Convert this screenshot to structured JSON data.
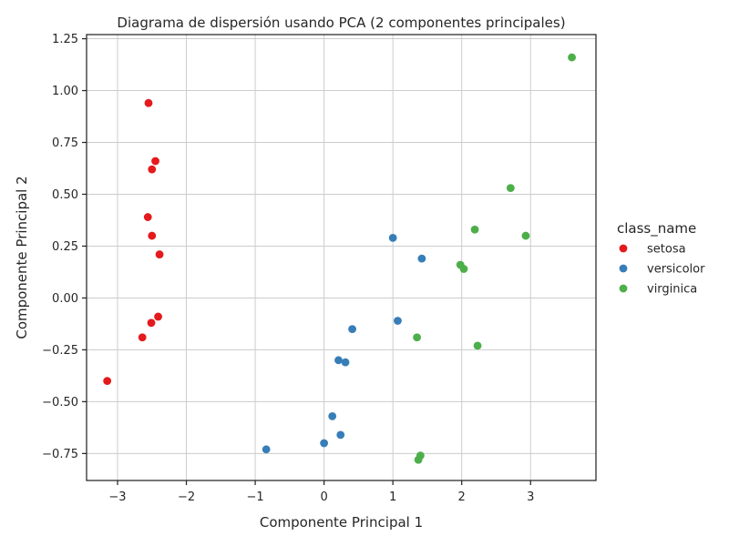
{
  "chart_data": {
    "type": "scatter",
    "title": "Diagrama de dispersión usando PCA (2 componentes principales)",
    "xlabel": "Componente Principal 1",
    "ylabel": "Componente Principal 2",
    "xlim": [
      -3.45,
      3.95
    ],
    "ylim": [
      -0.88,
      1.27
    ],
    "xticks": [
      -3,
      -2,
      -1,
      0,
      1,
      2,
      3
    ],
    "xtick_labels": [
      "−3",
      "−2",
      "−1",
      "0",
      "1",
      "2",
      "3"
    ],
    "yticks": [
      -0.75,
      -0.5,
      -0.25,
      0.0,
      0.25,
      0.5,
      0.75,
      1.0,
      1.25
    ],
    "ytick_labels": [
      "−0.75",
      "−0.50",
      "−0.25",
      "0.00",
      "0.25",
      "0.50",
      "0.75",
      "1.00",
      "1.25"
    ],
    "grid": true,
    "legend": {
      "title": "class_name",
      "placement": "right"
    },
    "series": [
      {
        "name": "setosa",
        "color": "#e41a1c",
        "points": [
          [
            -2.55,
            0.94
          ],
          [
            -2.45,
            0.66
          ],
          [
            -2.5,
            0.62
          ],
          [
            -2.56,
            0.39
          ],
          [
            -2.5,
            0.3
          ],
          [
            -2.39,
            0.21
          ],
          [
            -2.41,
            -0.09
          ],
          [
            -2.51,
            -0.12
          ],
          [
            -2.64,
            -0.19
          ],
          [
            -3.15,
            -0.4
          ]
        ]
      },
      {
        "name": "versicolor",
        "color": "#377eb8",
        "points": [
          [
            1.0,
            0.29
          ],
          [
            1.42,
            0.19
          ],
          [
            1.07,
            -0.11
          ],
          [
            0.41,
            -0.15
          ],
          [
            0.21,
            -0.3
          ],
          [
            0.31,
            -0.31
          ],
          [
            0.12,
            -0.57
          ],
          [
            0.24,
            -0.66
          ],
          [
            0.0,
            -0.7
          ],
          [
            -0.84,
            -0.73
          ]
        ]
      },
      {
        "name": "virginica",
        "color": "#4daf4a",
        "points": [
          [
            3.6,
            1.16
          ],
          [
            2.71,
            0.53
          ],
          [
            2.19,
            0.33
          ],
          [
            2.93,
            0.3
          ],
          [
            1.98,
            0.16
          ],
          [
            2.03,
            0.14
          ],
          [
            1.35,
            -0.19
          ],
          [
            2.23,
            -0.23
          ],
          [
            1.4,
            -0.76
          ],
          [
            1.37,
            -0.78
          ]
        ]
      }
    ]
  }
}
